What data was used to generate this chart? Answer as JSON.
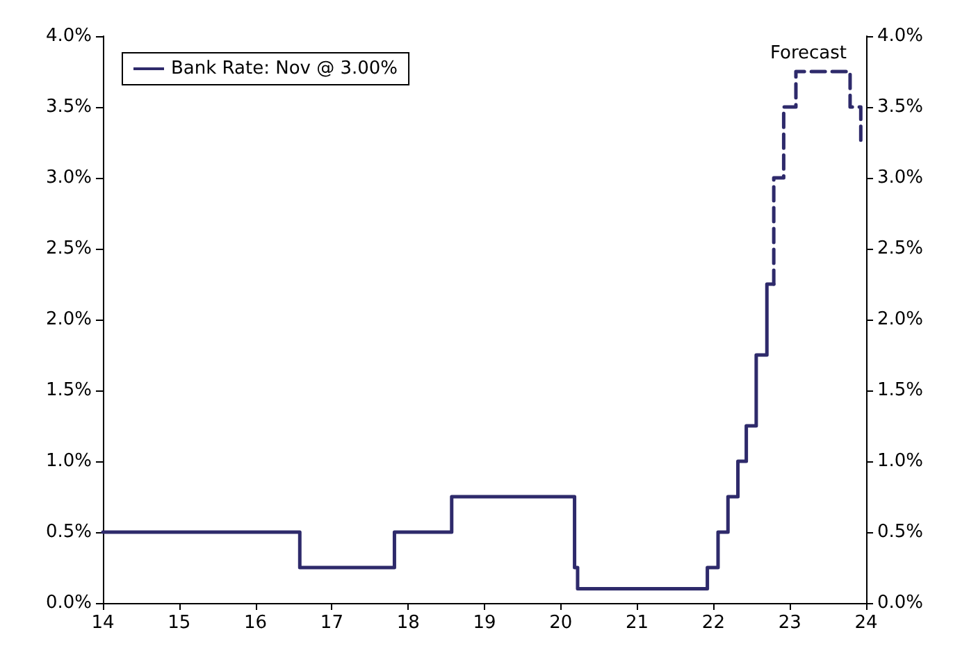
{
  "chart_data": {
    "type": "step",
    "legend": "top left",
    "grid": false,
    "marker": "none",
    "xlim": [
      14,
      24
    ],
    "xticks": [
      14,
      15,
      16,
      17,
      18,
      19,
      20,
      21,
      22,
      23,
      24
    ],
    "ylim": [
      0,
      4
    ],
    "yticks": [
      {
        "value": 0,
        "label": "0.0%"
      },
      {
        "value": 0.5,
        "label": "0.5%"
      },
      {
        "value": 1,
        "label": "1.0%"
      },
      {
        "value": 1.5,
        "label": "1.5%"
      },
      {
        "value": 2,
        "label": "2.0%"
      },
      {
        "value": 2.5,
        "label": "2.5%"
      },
      {
        "value": 3,
        "label": "3.0%"
      },
      {
        "value": 3.5,
        "label": "3.5%"
      },
      {
        "value": 4,
        "label": "4.0%"
      }
    ],
    "y2lim": [
      0,
      4
    ],
    "y2ticks": [
      {
        "value": 0,
        "label": "0.0%"
      },
      {
        "value": 0.5,
        "label": "0.5%"
      },
      {
        "value": 1,
        "label": "1.0%"
      },
      {
        "value": 1.5,
        "label": "1.5%"
      },
      {
        "value": 2,
        "label": "2.0%"
      },
      {
        "value": 2.5,
        "label": "2.5%"
      },
      {
        "value": 3,
        "label": "3.0%"
      },
      {
        "value": 3.5,
        "label": "3.5%"
      },
      {
        "value": 4,
        "label": "4.0%"
      }
    ],
    "annotations": [
      "Forecast"
    ],
    "series": [
      {
        "name": "Bank Rate: Nov @ 3.00%",
        "color": "#2e2a6b",
        "line_style": "solid",
        "x": [
          14,
          16.58,
          17.82,
          18.57,
          20.18,
          20.22,
          21.92,
          22.06,
          22.19,
          22.32,
          22.43,
          22.56,
          22.7,
          22.79
        ],
        "values": [
          0.5,
          0.25,
          0.5,
          0.75,
          0.25,
          0.1,
          0.25,
          0.5,
          0.75,
          1.0,
          1.25,
          1.75,
          2.25,
          2.25
        ]
      },
      {
        "color": "#2e2a6b",
        "line_style": "dashed",
        "x": [
          22.79,
          22.79,
          22.92,
          23.08,
          23.79,
          23.93
        ],
        "values": [
          2.25,
          3.0,
          3.5,
          3.75,
          3.5,
          3.25
        ]
      }
    ]
  }
}
